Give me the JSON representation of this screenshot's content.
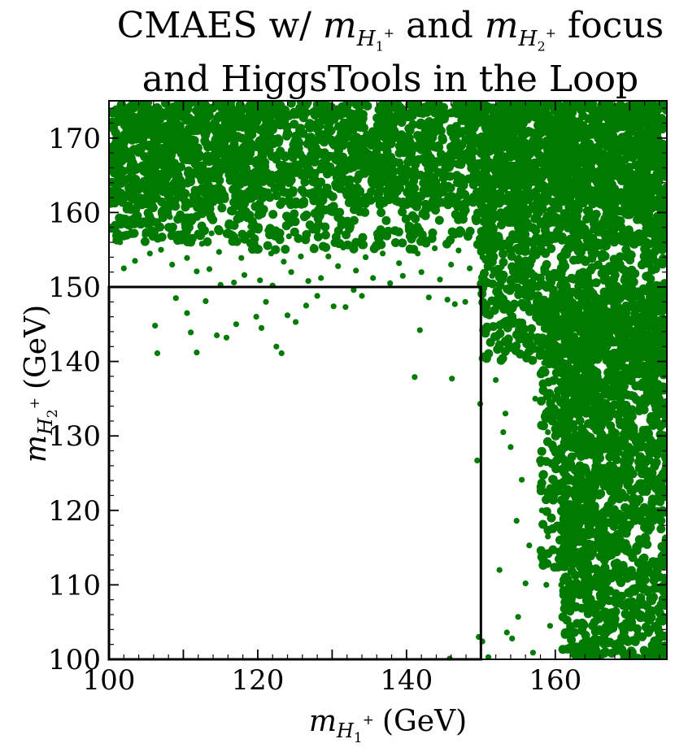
{
  "chart_data": {
    "type": "scatter",
    "title": {
      "line1_prefix": "CMAES w/",
      "line1_mid": "and",
      "line1_suffix": "focus",
      "line2": "and HiggsTools in the Loop",
      "m1_sub": "H",
      "m1_subsub": "1",
      "m2_sub": "H",
      "m2_subsub": "2"
    },
    "xlabel": {
      "symbol": "m",
      "sub": "H",
      "subsub": "1",
      "sup": "+",
      "unit": "(GeV)"
    },
    "ylabel": {
      "symbol": "m",
      "sub": "H",
      "subsub": "2",
      "sup": "+",
      "unit": "(GeV)"
    },
    "xlim": [
      100,
      175
    ],
    "ylim": [
      100,
      175
    ],
    "xticks": [
      100,
      120,
      140,
      160
    ],
    "yticks": [
      100,
      110,
      120,
      130,
      140,
      150,
      160,
      170
    ],
    "grid": false,
    "marker_color": "#007a00",
    "region_box": {
      "x": [
        100,
        150
      ],
      "y": [
        100,
        150
      ],
      "color": "#000000"
    },
    "sparse_points": [
      [
        106.2,
        144.8
      ],
      [
        106.5,
        141.1
      ],
      [
        109.0,
        148.5
      ],
      [
        110.5,
        146.5
      ],
      [
        111.0,
        143.9
      ],
      [
        111.8,
        141.2
      ],
      [
        113.0,
        148.1
      ],
      [
        114.5,
        143.5
      ],
      [
        115.8,
        143.2
      ],
      [
        117.1,
        145.0
      ],
      [
        119.8,
        146.0
      ],
      [
        120.5,
        144.5
      ],
      [
        121.1,
        148.0
      ],
      [
        122.5,
        142.0
      ],
      [
        123.2,
        141.1
      ],
      [
        124.0,
        146.2
      ],
      [
        125.1,
        145.3
      ],
      [
        126.5,
        147.5
      ],
      [
        128.0,
        148.8
      ],
      [
        130.2,
        147.4
      ],
      [
        131.8,
        147.3
      ],
      [
        132.9,
        149.6
      ],
      [
        134.0,
        148.8
      ],
      [
        141.1,
        137.9
      ],
      [
        141.8,
        144.2
      ],
      [
        143.0,
        148.6
      ],
      [
        145.5,
        148.3
      ],
      [
        146.1,
        137.7
      ],
      [
        146.5,
        147.7
      ],
      [
        147.9,
        148.0
      ],
      [
        149.5,
        126.7
      ],
      [
        149.9,
        134.3
      ],
      [
        150.1,
        140.4
      ],
      [
        149.7,
        103.0
      ],
      [
        150.2,
        102.4
      ],
      [
        151.0,
        100.3
      ],
      [
        145.8,
        100.1
      ],
      [
        152.0,
        137.5
      ],
      [
        153.3,
        133.0
      ],
      [
        153.0,
        130.5
      ],
      [
        154.0,
        128.5
      ],
      [
        155.5,
        124.1
      ],
      [
        154.8,
        118.6
      ],
      [
        156.5,
        115.3
      ],
      [
        152.5,
        112.0
      ],
      [
        156.0,
        110.2
      ],
      [
        155.0,
        105.7
      ],
      [
        153.5,
        103.6
      ],
      [
        154.2,
        102.8
      ],
      [
        157.0,
        100.9
      ],
      [
        158.2,
        120.0
      ],
      [
        157.3,
        135.0
      ],
      [
        156.0,
        141.0
      ],
      [
        155.2,
        144.5
      ],
      [
        158.5,
        139.8
      ],
      [
        159.0,
        130.5
      ],
      [
        158.0,
        126.2
      ],
      [
        160.0,
        122.0
      ],
      [
        159.0,
        116.5
      ],
      [
        158.8,
        110.0
      ],
      [
        159.3,
        104.5
      ],
      [
        157.8,
        146.0
      ],
      [
        156.2,
        149.8
      ],
      [
        159.5,
        145.2
      ],
      [
        160.2,
        137.5
      ],
      [
        161.0,
        134.0
      ],
      [
        160.5,
        128.0
      ],
      [
        160.8,
        110.0
      ],
      [
        161.5,
        105.5
      ],
      [
        153.8,
        146.5
      ],
      [
        152.5,
        149.8
      ],
      [
        151.5,
        151.5
      ],
      [
        148.5,
        152.5
      ],
      [
        146.0,
        153.0
      ],
      [
        144.5,
        151.0
      ],
      [
        142.0,
        152.0
      ],
      [
        139.5,
        151.5
      ],
      [
        137.8,
        150.5
      ],
      [
        135.5,
        151.2
      ],
      [
        133.2,
        152.2
      ],
      [
        130.8,
        152.8
      ],
      [
        128.5,
        151.2
      ],
      [
        126.8,
        150.8
      ],
      [
        124.5,
        152.0
      ],
      [
        122.0,
        150.2
      ],
      [
        120.3,
        150.9
      ],
      [
        118.2,
        151.6
      ],
      [
        116.8,
        150.6
      ],
      [
        115.0,
        150.3
      ],
      [
        113.5,
        152.4
      ],
      [
        111.8,
        152.1
      ],
      [
        110.5,
        153.9
      ],
      [
        108.5,
        153.0
      ],
      [
        107.0,
        155.0
      ],
      [
        105.5,
        154.5
      ],
      [
        103.5,
        153.5
      ],
      [
        102.0,
        152.5
      ],
      [
        104.8,
        157.0
      ],
      [
        106.8,
        158.2
      ],
      [
        110.0,
        156.5
      ],
      [
        112.5,
        155.8
      ],
      [
        114.8,
        154.7
      ],
      [
        117.8,
        153.9
      ],
      [
        119.5,
        155.2
      ],
      [
        121.8,
        154.5
      ],
      [
        123.5,
        153.4
      ],
      [
        125.8,
        154.1
      ],
      [
        101.5,
        156.0
      ],
      [
        100.6,
        158.1
      ],
      [
        103.0,
        158.9
      ],
      [
        108.2,
        159.4
      ],
      [
        111.2,
        158.7
      ],
      [
        113.8,
        157.2
      ],
      [
        116.2,
        156.9
      ],
      [
        119.0,
        158.1
      ],
      [
        121.3,
        157.6
      ],
      [
        124.2,
        156.8
      ],
      [
        127.5,
        155.4
      ],
      [
        129.5,
        154.1
      ],
      [
        131.5,
        155.3
      ],
      [
        134.5,
        154.0
      ],
      [
        136.8,
        154.5
      ],
      [
        139.0,
        153.2
      ],
      [
        141.5,
        154.5
      ],
      [
        143.8,
        155.2
      ],
      [
        147.0,
        154.9
      ],
      [
        150.2,
        154.0
      ],
      [
        152.8,
        152.7
      ],
      [
        155.0,
        151.3
      ]
    ]
  }
}
